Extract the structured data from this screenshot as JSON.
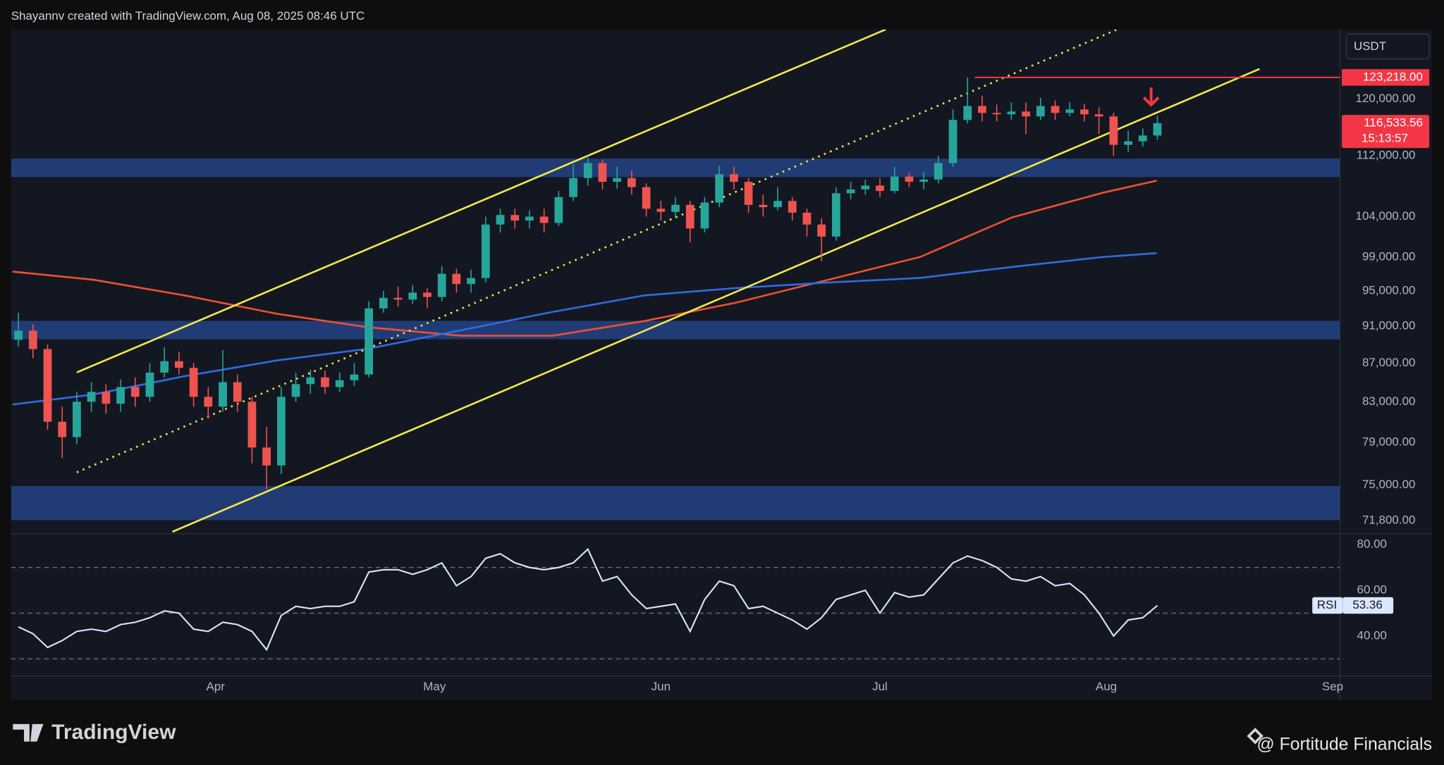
{
  "header": "Shayannv created with TradingView.com, Aug 08, 2025 08:46 UTC",
  "footer": {
    "logo": "TradingView",
    "credit": "@ Fortitude Financials"
  },
  "chart_data": [
    {
      "type": "candlestick",
      "currency": "USDT",
      "up_color": "#26a69a",
      "down_color": "#ef5350",
      "x": [
        4,
        6,
        8,
        10,
        12,
        14,
        16,
        18,
        20,
        22,
        24,
        26,
        28,
        30,
        32,
        34,
        36,
        38,
        40,
        42,
        44,
        46,
        48,
        50,
        52,
        54,
        56,
        58,
        60,
        62,
        64,
        66,
        68,
        70,
        72,
        74,
        76,
        78,
        80,
        82,
        84,
        86,
        88,
        90,
        92,
        94,
        96,
        98,
        100,
        102,
        104,
        106,
        108,
        110,
        112,
        114,
        116,
        118,
        120,
        122,
        124,
        126,
        128,
        130,
        132,
        134,
        136,
        138,
        140,
        142,
        144,
        146,
        148,
        150,
        152,
        154,
        156,
        158,
        160
      ],
      "open": [
        89500,
        90500,
        88500,
        81000,
        79500,
        83000,
        84000,
        82800,
        84500,
        83500,
        86000,
        87200,
        86500,
        83500,
        82500,
        85000,
        83000,
        78500,
        76800,
        83500,
        84800,
        85500,
        84500,
        85200,
        85800,
        93000,
        94200,
        94000,
        94800,
        94300,
        97000,
        95800,
        96500,
        103000,
        104200,
        103500,
        104000,
        103200,
        106500,
        109000,
        111000,
        108500,
        109000,
        107800,
        105000,
        104600,
        105500,
        102500,
        105800,
        109500,
        108500,
        105500,
        105200,
        106000,
        104500,
        103000,
        101500,
        107000,
        107500,
        108000,
        107300,
        109200,
        108500,
        108800,
        111000,
        117000,
        119000,
        118000,
        117800,
        118200,
        117500,
        119000,
        118000,
        118500,
        117800,
        117500,
        113500,
        114000,
        114800
      ],
      "high": [
        92500,
        91200,
        89000,
        82500,
        84000,
        85000,
        84800,
        85300,
        85500,
        87000,
        88700,
        88200,
        87000,
        84500,
        88400,
        85800,
        83500,
        80500,
        84500,
        86000,
        86300,
        86200,
        86000,
        87000,
        93800,
        95000,
        95500,
        95700,
        95300,
        97900,
        97600,
        97500,
        104000,
        105000,
        105000,
        104800,
        105000,
        107300,
        110800,
        112000,
        111500,
        110500,
        110000,
        108300,
        106000,
        106500,
        106000,
        106500,
        110600,
        110500,
        109000,
        106800,
        107800,
        106500,
        105000,
        103800,
        107800,
        108500,
        108800,
        109000,
        110500,
        109700,
        109800,
        112000,
        118500,
        123218,
        120500,
        119200,
        119500,
        119500,
        120200,
        119800,
        119600,
        119300,
        118800,
        118000,
        115500,
        115800,
        117600
      ],
      "low": [
        88800,
        87500,
        80200,
        77500,
        78800,
        82000,
        81800,
        82000,
        82500,
        83000,
        85500,
        85800,
        82500,
        81300,
        82000,
        82000,
        77000,
        74600,
        76000,
        83000,
        83800,
        83800,
        84000,
        84600,
        85500,
        92500,
        93200,
        93500,
        93000,
        93800,
        94800,
        94800,
        96000,
        102000,
        102500,
        102500,
        102000,
        102800,
        106000,
        108000,
        107500,
        107600,
        106800,
        104000,
        103500,
        103800,
        100800,
        102000,
        105200,
        107500,
        104500,
        104000,
        104800,
        103500,
        101500,
        98500,
        101000,
        106200,
        106800,
        106500,
        107000,
        107800,
        107500,
        108300,
        110500,
        116500,
        116800,
        116800,
        117000,
        115000,
        117000,
        117000,
        117500,
        116800,
        115000,
        112000,
        112500,
        113300,
        114200
      ],
      "close": [
        90500,
        88500,
        81000,
        79500,
        83000,
        84000,
        82800,
        84500,
        83500,
        86000,
        87200,
        86500,
        83500,
        82500,
        85000,
        83000,
        78500,
        76800,
        83500,
        84800,
        85500,
        84500,
        85200,
        85800,
        93000,
        94200,
        94000,
        94800,
        94300,
        97000,
        95800,
        96500,
        103000,
        104200,
        103500,
        104000,
        103200,
        106500,
        109000,
        111000,
        108500,
        109000,
        107800,
        105000,
        104600,
        105500,
        102500,
        105800,
        109500,
        108500,
        105500,
        105200,
        106000,
        104500,
        103000,
        101500,
        107000,
        107500,
        108000,
        107300,
        109200,
        108500,
        108800,
        111000,
        117000,
        119000,
        118000,
        117800,
        118200,
        117500,
        119000,
        118000,
        118500,
        117800,
        117500,
        113500,
        114000,
        114800,
        116533.56
      ],
      "xlim": [
        3,
        185
      ],
      "xticks": [
        {
          "value": 31,
          "label": "Apr"
        },
        {
          "value": 61,
          "label": "May"
        },
        {
          "value": 92,
          "label": "Jun"
        },
        {
          "value": 122,
          "label": "Jul"
        },
        {
          "value": 153,
          "label": "Aug"
        },
        {
          "value": 184,
          "label": "Sep"
        }
      ],
      "ylim": [
        70840,
        130630
      ],
      "log_scale": true,
      "grid": false,
      "yticks": [
        {
          "value": 120000,
          "label": "120,000.00"
        },
        {
          "value": 112000,
          "label": "112,000.00"
        },
        {
          "value": 104000,
          "label": "104,000.00"
        },
        {
          "value": 99000,
          "label": "99,000.00"
        },
        {
          "value": 95000,
          "label": "95,000.00"
        },
        {
          "value": 91000,
          "label": "91,000.00"
        },
        {
          "value": 87000,
          "label": "87,000.00"
        },
        {
          "value": 83000,
          "label": "83,000.00"
        },
        {
          "value": 79000,
          "label": "79,000.00"
        },
        {
          "value": 75000,
          "label": "75,000.00"
        },
        {
          "value": 71800,
          "label": "71,800.00"
        }
      ],
      "zone_color": "#23407e",
      "zones": [
        [
          109130,
          111600
        ],
        [
          89570,
          91590
        ],
        [
          71850,
          74900
        ]
      ],
      "resistance": {
        "value": 123218,
        "label": "123,218.00",
        "x_start": 135,
        "color": "#f23645"
      },
      "last_price": {
        "value": 116533.56,
        "label": "116,533.56",
        "color": "#f23645"
      },
      "countdown": "15:13:57",
      "channel_color": "#f2e84b",
      "channel": [
        {
          "style": "solid",
          "points": [
            [
              12.0,
              86020
            ],
            [
              122.8,
              130630
            ]
          ]
        },
        {
          "style": "solid",
          "points": [
            [
              25.1,
              70843
            ],
            [
              174.0,
              124500
            ]
          ]
        },
        {
          "style": "dotted",
          "points": [
            [
              12.0,
              76160
            ],
            [
              154.5,
              130630
            ]
          ]
        }
      ],
      "moving_averages": [
        {
          "color": "#f0502f",
          "x": [
            3.2,
            14.3,
            26.8,
            39.4,
            52.0,
            64.6,
            77.2,
            89.7,
            102.3,
            114.9,
            127.5,
            140.1,
            152.6,
            159.9
          ],
          "values": [
            97260,
            96290,
            94470,
            92390,
            90870,
            89950,
            89950,
            91570,
            93650,
            96290,
            99010,
            103900,
            107080,
            108650
          ]
        },
        {
          "color": "#2f6cdf",
          "x": [
            3.2,
            14.3,
            26.8,
            39.4,
            52.0,
            64.6,
            77.2,
            89.7,
            102.3,
            114.9,
            127.5,
            140.1,
            152.6,
            159.9
          ],
          "values": [
            82720,
            83740,
            85630,
            87280,
            88550,
            90550,
            92600,
            94470,
            95330,
            95970,
            96510,
            97810,
            99010,
            99470
          ]
        }
      ]
    },
    {
      "type": "line",
      "name": "RSI",
      "color": "#dbe6ff",
      "x": [
        4,
        6,
        8,
        10,
        12,
        14,
        16,
        18,
        20,
        22,
        24,
        26,
        28,
        30,
        32,
        34,
        36,
        38,
        40,
        42,
        44,
        46,
        48,
        50,
        52,
        54,
        56,
        58,
        60,
        62,
        64,
        66,
        68,
        70,
        72,
        74,
        76,
        78,
        80,
        82,
        84,
        86,
        88,
        90,
        92,
        94,
        96,
        98,
        100,
        102,
        104,
        106,
        108,
        110,
        112,
        114,
        116,
        118,
        120,
        122,
        124,
        126,
        128,
        130,
        132,
        134,
        136,
        138,
        140,
        142,
        144,
        146,
        148,
        150,
        152,
        154,
        156,
        158,
        160
      ],
      "values": [
        44,
        41,
        35,
        38,
        42,
        43,
        42,
        45,
        46,
        48,
        51,
        50,
        43,
        42,
        46,
        45,
        42,
        34,
        49,
        53,
        52,
        53,
        53,
        55,
        68,
        69,
        69,
        67,
        69,
        72,
        62,
        66,
        74,
        76,
        72,
        70,
        69,
        70,
        72,
        78,
        64,
        66,
        58,
        52,
        53,
        54,
        42,
        56,
        64,
        62,
        52,
        53,
        50,
        47,
        43,
        48,
        56,
        58,
        60,
        50,
        59,
        57,
        58,
        65,
        72,
        75,
        73,
        70,
        65,
        64,
        66,
        62,
        63,
        58,
        50,
        40,
        47,
        48,
        53.36
      ],
      "xlim": [
        3,
        185
      ],
      "ylim": [
        22.4,
        84.4
      ],
      "yticks": [
        {
          "value": 40,
          "label": "40.00"
        },
        {
          "value": 60,
          "label": "60.00"
        },
        {
          "value": 80,
          "label": "80.00"
        }
      ],
      "levels": [
        30,
        50,
        70
      ]
    }
  ]
}
